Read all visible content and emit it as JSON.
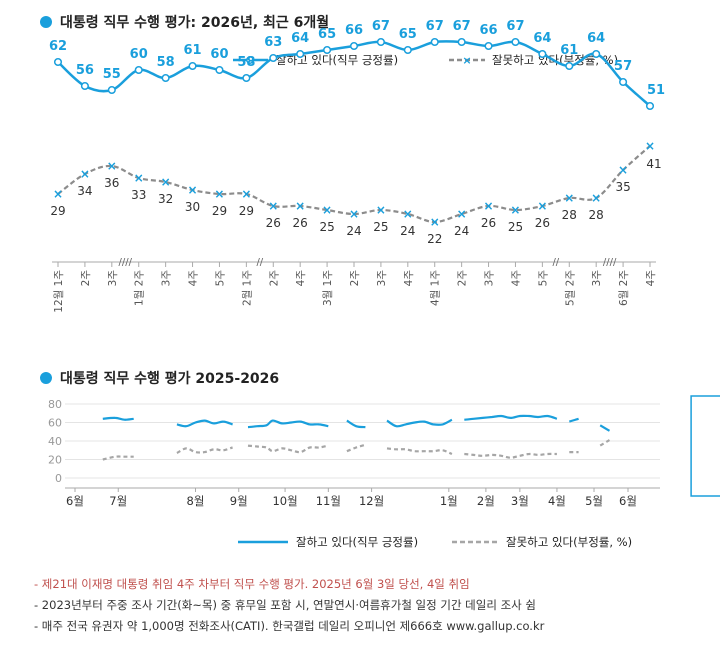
{
  "chart1_title": "대통령 직무 수행 평가: 2026년, 최근 6개월",
  "chart2_title": "대통령 직무 수행 평가 2025-2026",
  "notes": [
    "- 제21대 이재명 대통령 취임 4주 차부터 직무 수행 평가. 2025년 6월 3일 당선, 4일 취임",
    "- 2023년부터 주중 조사 기간(화~목) 중 휴무일 포함 시, 연말연시·여름휴가철 일정 기간 데일리 조사 쉼",
    "- 매주 전국 유권자 약 1,000명 전화조사(CATI). 한국갤럽 데일리 오피니언 제666호 www.gallup.co.kr"
  ],
  "colors": {
    "approve": "#1a9fdc",
    "disapprove": "#8c8c8c",
    "accent": "#1a9fdc",
    "note_red": "#c0504d"
  },
  "chart_data": [
    {
      "type": "line",
      "title": "대통령 직무 수행 평가: 2026년, 최근 6개월",
      "x": [
        "12월 1주",
        "2주",
        "3주",
        "1월 2주",
        "3주",
        "4주",
        "5주",
        "2월 1주",
        "2주",
        "4주",
        "3월 1주",
        "2주",
        "3주",
        "4주",
        "4월 1주",
        "2주",
        "3주",
        "4주",
        "5주",
        "5월 2주",
        "3주",
        "6월 2주",
        "4주"
      ],
      "break_marks": [
        {
          "between": [
            2,
            3
          ],
          "style": "////"
        },
        {
          "between": [
            7,
            8
          ],
          "style": "//"
        },
        {
          "between": [
            18,
            19
          ],
          "style": "//"
        },
        {
          "between": [
            20,
            21
          ],
          "style": "////"
        }
      ],
      "series": [
        {
          "name": "잘하고 있다(직무 긍정률)",
          "values": [
            62,
            56,
            55,
            60,
            58,
            61,
            60,
            58,
            63,
            64,
            65,
            66,
            67,
            65,
            67,
            67,
            66,
            67,
            64,
            61,
            64,
            57,
            51
          ]
        },
        {
          "name": "잘못하고 있다(부정률, %)",
          "values": [
            29,
            34,
            36,
            33,
            32,
            30,
            29,
            29,
            26,
            26,
            25,
            24,
            25,
            24,
            22,
            24,
            26,
            25,
            26,
            28,
            28,
            35,
            41
          ]
        }
      ],
      "legend_placement": "top-right",
      "data_labels": true
    },
    {
      "type": "line",
      "title": "대통령 직무 수행 평가 2025-2026",
      "x_ticks": [
        "6월",
        "7월",
        "8월",
        "9월",
        "10월",
        "11월",
        "12월",
        "1월",
        "2월",
        "3월",
        "4월",
        "5월",
        "6월"
      ],
      "y_ticks": [
        0,
        20,
        40,
        60,
        80
      ],
      "ylim": [
        0,
        80
      ],
      "grid": true,
      "legend_placement": "bottom",
      "series": [
        {
          "name": "잘하고 있다(직무 긍정률)",
          "segments": [
            [
              [
                0.9,
                64
              ],
              [
                1.3,
                65
              ],
              [
                1.6,
                63
              ],
              [
                1.9,
                64
              ]
            ],
            [
              [
                3.3,
                58
              ],
              [
                3.6,
                56
              ],
              [
                3.9,
                60
              ],
              [
                4.2,
                62
              ],
              [
                4.5,
                59
              ],
              [
                4.8,
                61
              ],
              [
                5.1,
                58
              ]
            ],
            [
              [
                5.6,
                55
              ],
              [
                5.9,
                56
              ],
              [
                6.2,
                57
              ],
              [
                6.4,
                62
              ],
              [
                6.7,
                59
              ],
              [
                7.0,
                60
              ],
              [
                7.3,
                61
              ],
              [
                7.6,
                58
              ],
              [
                7.9,
                58
              ],
              [
                8.2,
                56
              ]
            ],
            [
              [
                8.8,
                62
              ],
              [
                9.1,
                56
              ],
              [
                9.4,
                55
              ]
            ],
            [
              [
                10.1,
                62
              ],
              [
                10.4,
                56
              ],
              [
                10.7,
                58
              ],
              [
                11.0,
                60
              ],
              [
                11.3,
                61
              ],
              [
                11.6,
                58
              ],
              [
                11.9,
                58
              ],
              [
                12.2,
                63
              ]
            ],
            [
              [
                12.6,
                63
              ],
              [
                12.9,
                64
              ],
              [
                13.2,
                65
              ],
              [
                13.5,
                66
              ],
              [
                13.8,
                67
              ],
              [
                14.1,
                65
              ],
              [
                14.4,
                67
              ],
              [
                14.7,
                67
              ],
              [
                15.0,
                66
              ],
              [
                15.3,
                67
              ],
              [
                15.6,
                64
              ]
            ],
            [
              [
                16.0,
                61
              ],
              [
                16.3,
                64
              ]
            ],
            [
              [
                17.0,
                57
              ],
              [
                17.3,
                51
              ]
            ]
          ]
        },
        {
          "name": "잘못하고 있다(부정률, %)",
          "segments": [
            [
              [
                0.9,
                20
              ],
              [
                1.3,
                23
              ],
              [
                1.6,
                23
              ],
              [
                1.9,
                23
              ]
            ],
            [
              [
                3.3,
                27
              ],
              [
                3.6,
                32
              ],
              [
                3.9,
                28
              ],
              [
                4.2,
                28
              ],
              [
                4.5,
                31
              ],
              [
                4.8,
                30
              ],
              [
                5.1,
                33
              ]
            ],
            [
              [
                5.6,
                35
              ],
              [
                5.9,
                34
              ],
              [
                6.2,
                33
              ],
              [
                6.4,
                29
              ],
              [
                6.7,
                32
              ],
              [
                7.0,
                30
              ],
              [
                7.3,
                28
              ],
              [
                7.6,
                33
              ],
              [
                7.9,
                33
              ],
              [
                8.2,
                35
              ]
            ],
            [
              [
                8.8,
                29
              ],
              [
                9.1,
                33
              ],
              [
                9.4,
                36
              ]
            ],
            [
              [
                10.1,
                32
              ],
              [
                10.4,
                31
              ],
              [
                10.7,
                31
              ],
              [
                11.0,
                29
              ],
              [
                11.3,
                29
              ],
              [
                11.6,
                29
              ],
              [
                11.9,
                30
              ],
              [
                12.2,
                26
              ]
            ],
            [
              [
                12.6,
                26
              ],
              [
                12.9,
                25
              ],
              [
                13.2,
                24
              ],
              [
                13.5,
                25
              ],
              [
                13.8,
                24
              ],
              [
                14.1,
                22
              ],
              [
                14.4,
                24
              ],
              [
                14.7,
                26
              ],
              [
                15.0,
                25
              ],
              [
                15.3,
                26
              ],
              [
                15.6,
                26
              ]
            ],
            [
              [
                16.0,
                28
              ],
              [
                16.3,
                28
              ]
            ],
            [
              [
                17.0,
                35
              ],
              [
                17.3,
                41
              ]
            ]
          ]
        }
      ],
      "highlight_range": [
        12.4,
        17.6
      ]
    }
  ]
}
